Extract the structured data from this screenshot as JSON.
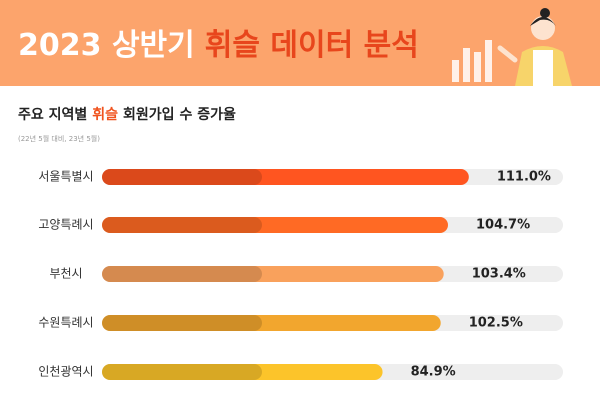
{
  "chart_data": {
    "type": "bar",
    "orientation": "horizontal",
    "title": "2023 상반기",
    "title_highlight": "휘슬 데이터 분석",
    "subtitle": "주요 지역별",
    "subtitle_highlight": "휘슬",
    "subtitle_rest": "회원가입 수 증가율",
    "note": "(22년 5월 대비, 23년 5월)",
    "categories": [
      "서울특별시",
      "고양특례시",
      "부천시",
      "수원특례시",
      "인천광역시"
    ],
    "values": [
      111.0,
      104.7,
      103.4,
      102.5,
      84.9
    ],
    "value_labels": [
      "111.0%",
      "104.7%",
      "103.4%",
      "102.5%",
      "84.9%"
    ],
    "colors": [
      "#ff5520",
      "#ff6a24",
      "#f9a15c",
      "#f2a62e",
      "#fcc42a"
    ],
    "xlim": [
      0,
      139.5
    ]
  }
}
